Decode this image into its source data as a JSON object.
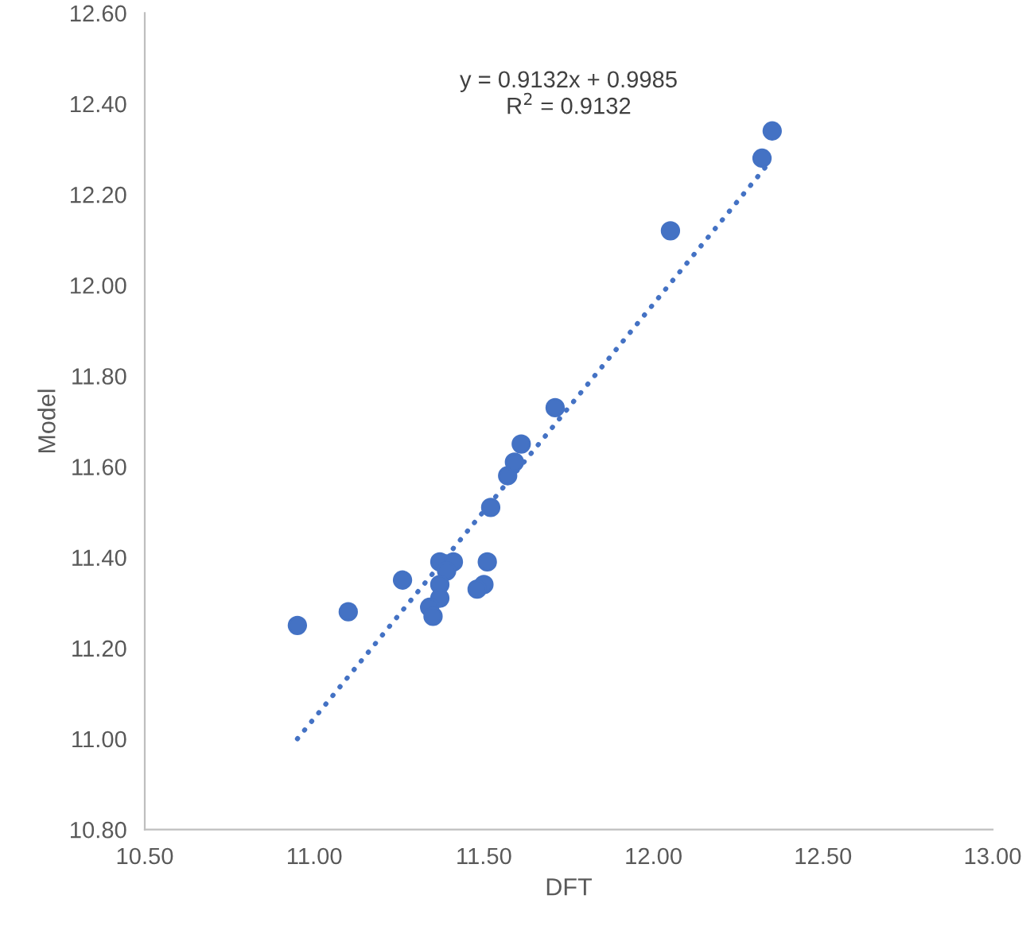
{
  "chart_data": {
    "type": "scatter",
    "xlabel": "DFT",
    "ylabel": "Model",
    "xlim": [
      10.5,
      13.0
    ],
    "ylim": [
      10.8,
      12.6
    ],
    "xticks": [
      {
        "value": 10.5,
        "label": "10.50"
      },
      {
        "value": 11.0,
        "label": "11.00"
      },
      {
        "value": 11.5,
        "label": "11.50"
      },
      {
        "value": 12.0,
        "label": "12.00"
      },
      {
        "value": 12.5,
        "label": "12.50"
      },
      {
        "value": 13.0,
        "label": "13.00"
      }
    ],
    "yticks": [
      {
        "value": 10.8,
        "label": "10.80"
      },
      {
        "value": 11.0,
        "label": "11.00"
      },
      {
        "value": 11.2,
        "label": "11.20"
      },
      {
        "value": 11.4,
        "label": "11.40"
      },
      {
        "value": 11.6,
        "label": "11.60"
      },
      {
        "value": 11.8,
        "label": "11.80"
      },
      {
        "value": 12.0,
        "label": "12.00"
      },
      {
        "value": 12.2,
        "label": "12.20"
      },
      {
        "value": 12.4,
        "label": "12.40"
      },
      {
        "value": 12.6,
        "label": "12.60"
      }
    ],
    "grid": false,
    "legend": false,
    "series": [
      {
        "marker": "circle",
        "color": "#4472c4",
        "x": [
          10.95,
          11.1,
          11.26,
          11.37,
          11.41,
          11.39,
          11.37,
          11.37,
          11.34,
          11.35,
          11.51,
          11.5,
          11.48,
          11.52,
          11.57,
          11.59,
          11.61,
          11.71,
          12.05,
          12.32,
          12.35
        ],
        "values": [
          11.25,
          11.28,
          11.35,
          11.39,
          11.39,
          11.37,
          11.34,
          11.31,
          11.29,
          11.27,
          11.39,
          11.34,
          11.33,
          11.51,
          11.58,
          11.61,
          11.65,
          11.73,
          12.12,
          12.28,
          12.34
        ]
      },
      {
        "type": "line",
        "color": "#4472c4",
        "line_style": "dotted",
        "x": [
          10.95,
          12.33
        ],
        "values": [
          11.0,
          12.26
        ]
      }
    ],
    "annotations": [
      "y = 0.9132x + 0.9985\nR$^{2}$ = 0.9132"
    ]
  }
}
